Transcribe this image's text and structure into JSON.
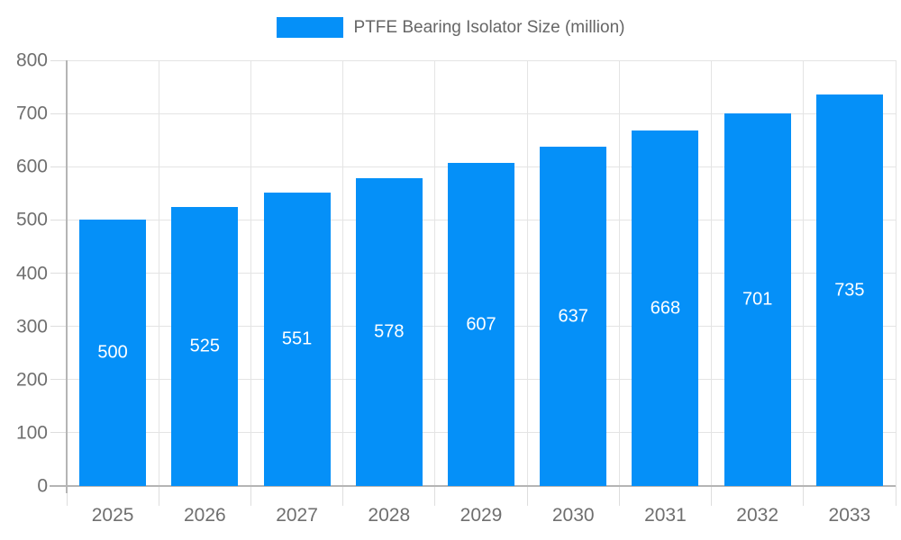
{
  "chart_data": {
    "type": "bar",
    "title": "",
    "legend": "PTFE Bearing Isolator Size (million)",
    "legend_position": "top",
    "categories": [
      "2025",
      "2026",
      "2027",
      "2028",
      "2029",
      "2030",
      "2031",
      "2032",
      "2033"
    ],
    "values": [
      500,
      525,
      551,
      578,
      607,
      637,
      668,
      701,
      735
    ],
    "value_labels": [
      "500",
      "525",
      "551",
      "578",
      "607",
      "637",
      "668",
      "701",
      "735"
    ],
    "xlabel": "",
    "ylabel": "",
    "ylim": [
      0,
      800
    ],
    "y_ticks": [
      0,
      100,
      200,
      300,
      400,
      500,
      600,
      700,
      800
    ],
    "grid": true,
    "colors": {
      "bar": "#0590F8",
      "bar_value_label": "#FFFFFF",
      "legend_text": "#666666",
      "axis_text": "#6F6F6F",
      "gridline": "#E4E4E4",
      "tick": "#DEDEDE",
      "axis_line": "#B5B5B5",
      "background": "#FFFFFF"
    }
  }
}
